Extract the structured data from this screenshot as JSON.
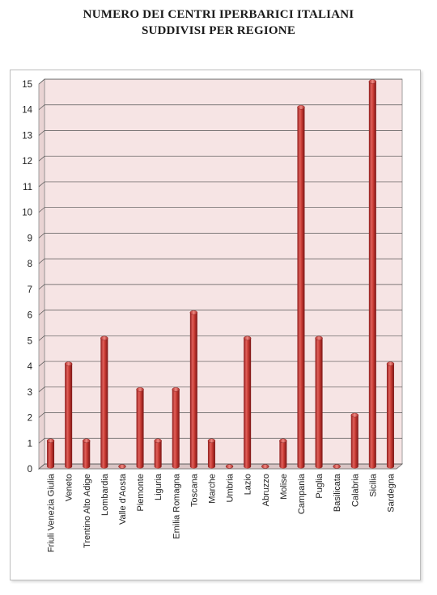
{
  "chart_data": {
    "type": "bar",
    "title_lines": [
      "NUMERO DEI CENTRI IPERBARICI ITALIANI",
      "SUDDIVISI PER REGIONE"
    ],
    "categories": [
      "Friuli Venezia Giulia",
      "Veneto",
      "Trentino Alto Adige",
      "Lombardia",
      "Valle d'Aosta",
      "Piemonte",
      "Liguria",
      "Emilia Romagna",
      "Toscana",
      "Marche",
      "Umbria",
      "Lazio",
      "Abruzzo",
      "Molise",
      "Campania",
      "Puglia",
      "Basilicata",
      "Calabria",
      "Sicilia",
      "Sardegna"
    ],
    "values": [
      1,
      4,
      1,
      5,
      0,
      3,
      1,
      3,
      6,
      1,
      0,
      5,
      0,
      1,
      14,
      5,
      0,
      2,
      15,
      4
    ],
    "ylim": [
      0,
      15
    ],
    "yticks": [
      "0",
      "1",
      "2",
      "3",
      "4",
      "5",
      "6",
      "7",
      "8",
      "9",
      "10",
      "11",
      "12",
      "13",
      "14",
      "15"
    ],
    "grid": true,
    "legend": "none",
    "colors": {
      "bar": "#c0392b",
      "plot_background": "#f6e4e4",
      "grid": "#555555"
    }
  }
}
